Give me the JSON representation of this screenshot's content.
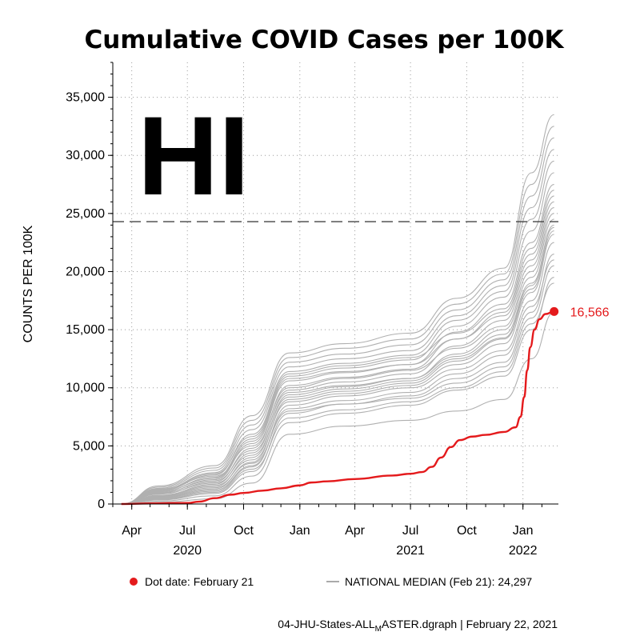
{
  "chart_data": {
    "type": "line",
    "title": "Cumulative COVID Cases per 100K",
    "state_label": "HI",
    "ylabel": "COUNTS PER 100K",
    "ylim": [
      0,
      38000
    ],
    "x_range": [
      "2020-03-01",
      "2022-02-28"
    ],
    "y_ticks": [
      {
        "value": 0,
        "label": "0"
      },
      {
        "value": 5000,
        "label": "5,000"
      },
      {
        "value": 10000,
        "label": "10,000"
      },
      {
        "value": 15000,
        "label": "15,000"
      },
      {
        "value": 20000,
        "label": "20,000"
      },
      {
        "value": 25000,
        "label": "25,000"
      },
      {
        "value": 30000,
        "label": "30,000"
      },
      {
        "value": 35000,
        "label": "35,000"
      }
    ],
    "x_ticks": [
      {
        "date": "2020-04-01",
        "label": "Apr"
      },
      {
        "date": "2020-07-01",
        "label": "Jul"
      },
      {
        "date": "2020-10-01",
        "label": "Oct"
      },
      {
        "date": "2021-01-01",
        "label": "Jan"
      },
      {
        "date": "2021-04-01",
        "label": "Apr"
      },
      {
        "date": "2021-07-01",
        "label": "Jul"
      },
      {
        "date": "2021-10-01",
        "label": "Oct"
      },
      {
        "date": "2022-01-01",
        "label": "Jan"
      }
    ],
    "year_labels": [
      {
        "date": "2020-07-01",
        "label": "2020"
      },
      {
        "date": "2021-07-01",
        "label": "2021"
      },
      {
        "date": "2022-01-01",
        "label": "2022"
      }
    ],
    "grid": true,
    "highlight_series": {
      "name": "HI",
      "color": "#e41a1c",
      "points": [
        [
          "2020-03-15",
          0
        ],
        [
          "2020-05-01",
          50
        ],
        [
          "2020-07-01",
          90
        ],
        [
          "2020-07-20",
          200
        ],
        [
          "2020-08-15",
          500
        ],
        [
          "2020-09-10",
          800
        ],
        [
          "2020-10-01",
          950
        ],
        [
          "2020-11-01",
          1150
        ],
        [
          "2020-12-01",
          1350
        ],
        [
          "2021-01-01",
          1600
        ],
        [
          "2021-01-20",
          1850
        ],
        [
          "2021-02-15",
          1950
        ],
        [
          "2021-04-01",
          2150
        ],
        [
          "2021-06-01",
          2450
        ],
        [
          "2021-07-01",
          2600
        ],
        [
          "2021-07-20",
          2750
        ],
        [
          "2021-08-05",
          3200
        ],
        [
          "2021-08-20",
          4000
        ],
        [
          "2021-09-05",
          4900
        ],
        [
          "2021-09-20",
          5500
        ],
        [
          "2021-10-10",
          5800
        ],
        [
          "2021-11-01",
          5950
        ],
        [
          "2021-12-01",
          6200
        ],
        [
          "2021-12-20",
          6600
        ],
        [
          "2021-12-28",
          7500
        ],
        [
          "2022-01-03",
          9200
        ],
        [
          "2022-01-08",
          11500
        ],
        [
          "2022-01-13",
          13500
        ],
        [
          "2022-01-20",
          15000
        ],
        [
          "2022-01-28",
          15900
        ],
        [
          "2022-02-07",
          16350
        ],
        [
          "2022-02-21",
          16566
        ]
      ],
      "end_value": 16566,
      "end_label": "16,566"
    },
    "background_series_color": "#b0b0b0",
    "background_series": [
      [
        0,
        150,
        450,
        1800,
        6000,
        6700,
        7200,
        8000,
        9000,
        12500,
        16500
      ],
      [
        0,
        250,
        700,
        2400,
        7000,
        7800,
        8500,
        9800,
        11000,
        15000,
        19500
      ],
      [
        0,
        350,
        900,
        2800,
        7800,
        8600,
        9300,
        10800,
        12200,
        16500,
        21500
      ],
      [
        0,
        450,
        1100,
        3200,
        8500,
        9300,
        10000,
        11600,
        13200,
        17500,
        22500
      ],
      [
        0,
        550,
        1300,
        3600,
        9000,
        9700,
        10400,
        12300,
        14200,
        18500,
        23500
      ],
      [
        0,
        650,
        1500,
        4000,
        9400,
        10100,
        10800,
        12900,
        15000,
        19500,
        24500
      ],
      [
        0,
        750,
        1700,
        4400,
        9800,
        10500,
        11200,
        13600,
        15800,
        20500,
        25500
      ],
      [
        0,
        850,
        1900,
        4800,
        10200,
        10900,
        11600,
        14200,
        16500,
        21500,
        26500
      ],
      [
        0,
        950,
        2100,
        5200,
        10600,
        11300,
        12000,
        14800,
        17200,
        22500,
        27500
      ],
      [
        0,
        1050,
        2300,
        5600,
        11000,
        11700,
        12400,
        15300,
        17800,
        23500,
        28500
      ],
      [
        0,
        1150,
        2500,
        6000,
        11400,
        12100,
        12800,
        15800,
        18300,
        24500,
        29500
      ],
      [
        0,
        1250,
        2700,
        6400,
        11800,
        12500,
        13200,
        16200,
        18800,
        25500,
        30500
      ],
      [
        0,
        1350,
        2900,
        6800,
        12200,
        12900,
        13700,
        16700,
        19300,
        26500,
        31500
      ],
      [
        0,
        1450,
        3100,
        7200,
        12600,
        13400,
        14200,
        17200,
        19800,
        27500,
        32500
      ],
      [
        0,
        1550,
        3300,
        7600,
        13000,
        13800,
        14700,
        17700,
        20300,
        28500,
        33500
      ],
      [
        0,
        600,
        1400,
        3500,
        8000,
        8600,
        9100,
        10400,
        11800,
        16000,
        20500
      ],
      [
        0,
        1000,
        2000,
        4600,
        9600,
        10200,
        10800,
        12700,
        14600,
        19000,
        23800
      ],
      [
        0,
        1300,
        2400,
        5000,
        10000,
        10800,
        11500,
        13400,
        15300,
        20000,
        25000
      ],
      [
        0,
        900,
        1800,
        4200,
        9200,
        9900,
        10600,
        12500,
        14300,
        18800,
        24000
      ],
      [
        0,
        700,
        1600,
        3800,
        8800,
        9500,
        10200,
        12000,
        13800,
        18200,
        23200
      ],
      [
        0,
        1100,
        2200,
        5400,
        10800,
        11400,
        12000,
        14200,
        16200,
        21000,
        26000
      ],
      [
        0,
        1200,
        2600,
        5800,
        11200,
        11900,
        12600,
        14700,
        16800,
        22000,
        27000
      ],
      [
        0,
        400,
        1000,
        3000,
        7400,
        8100,
        8800,
        10000,
        11400,
        15500,
        19000
      ],
      [
        0,
        500,
        1200,
        3300,
        8200,
        8900,
        9600,
        11200,
        12800,
        17000,
        21000
      ]
    ],
    "median_line": {
      "value": 24297
    },
    "legend": {
      "dot_label": "Dot date: February 21",
      "median_label": "NATIONAL MEDIAN (Feb 21): 24,297"
    },
    "footer": {
      "prefix": "04-JHU-States-ALL",
      "subscript": "M",
      "suffix": "ASTER.dgraph | February 22, 2021"
    }
  }
}
